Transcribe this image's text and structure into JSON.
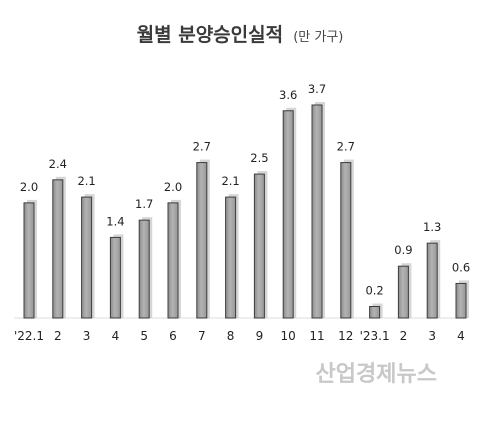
{
  "chart_data": {
    "type": "bar",
    "title": "월별 분양승인실적",
    "unit": "(만 가구)",
    "categories": [
      "'22.1",
      "2",
      "3",
      "4",
      "5",
      "6",
      "7",
      "8",
      "9",
      "10",
      "11",
      "12",
      "'23.1",
      "2",
      "3",
      "4"
    ],
    "values": [
      2.0,
      2.4,
      2.1,
      1.4,
      1.7,
      2.0,
      2.7,
      2.1,
      2.5,
      3.6,
      3.7,
      2.7,
      0.2,
      0.9,
      1.3,
      0.6
    ],
    "value_labels": [
      "2.0",
      "2.4",
      "2.1",
      "1.4",
      "1.7",
      "2.0",
      "2.7",
      "2.1",
      "2.5",
      "3.6",
      "3.7",
      "2.7",
      "0.2",
      "0.9",
      "1.3",
      "0.6"
    ],
    "ylim": [
      0,
      3.7
    ],
    "grid": false,
    "bar_color": "#a9a9a9",
    "bar_edge_color": "#3c3c3c",
    "shadow_color": "#b4b4b4"
  },
  "watermark": "산업경제뉴스"
}
